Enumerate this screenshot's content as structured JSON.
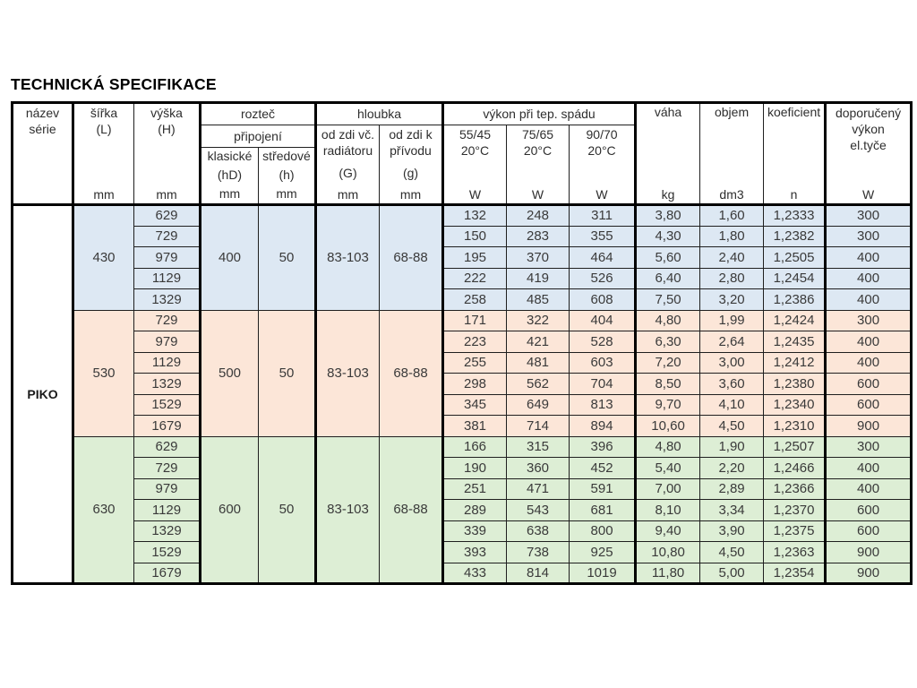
{
  "title": "TECHNICKÁ SPECIFIKACE",
  "table": {
    "series_name": "PIKO",
    "header": {
      "nazev": "název\nsérie",
      "sirka": "šířka\n(L)",
      "vyska": "výška\n(H)",
      "roztec": "rozteč",
      "pripojeni": "připojení",
      "klasicke": "klasické",
      "klasicke_sub": "(hD)",
      "stredove": "středové",
      "stredove_sub": "(h)",
      "hloubka": "hloubka",
      "od_zdi_vc": "od zdi vč.\nradiátoru",
      "od_zdi_vc_sub": "(G)",
      "od_zdi_k": "od zdi k\npřívodu",
      "od_zdi_k_sub": "(g)",
      "vykon": "výkon při tep. spádu",
      "t5545": "55/45\n20°C",
      "t7565": "75/65\n20°C",
      "t9070": "90/70\n20°C",
      "vaha": "váha",
      "vaha_unit": "kg",
      "objem": "objem",
      "objem_unit": "dm3",
      "koeficient": "koeficient",
      "koeficient_unit": "n",
      "doporuceny": "doporučený\nvýkon\nel.tyče",
      "unit_mm": "mm",
      "unit_w": "W"
    },
    "groups": [
      {
        "color": "#dde8f3",
        "sirka": "430",
        "klasicke": "400",
        "stredove": "50",
        "od_zdi_vc": "83-103",
        "od_zdi_k": "68-88",
        "rows": [
          [
            "629",
            "132",
            "248",
            "311",
            "3,80",
            "1,60",
            "1,2333",
            "300"
          ],
          [
            "729",
            "150",
            "283",
            "355",
            "4,30",
            "1,80",
            "1,2382",
            "300"
          ],
          [
            "979",
            "195",
            "370",
            "464",
            "5,60",
            "2,40",
            "1,2505",
            "400"
          ],
          [
            "1129",
            "222",
            "419",
            "526",
            "6,40",
            "2,80",
            "1,2454",
            "400"
          ],
          [
            "1329",
            "258",
            "485",
            "608",
            "7,50",
            "3,20",
            "1,2386",
            "400"
          ]
        ]
      },
      {
        "color": "#fce6d8",
        "sirka": "530",
        "klasicke": "500",
        "stredove": "50",
        "od_zdi_vc": "83-103",
        "od_zdi_k": "68-88",
        "rows": [
          [
            "729",
            "171",
            "322",
            "404",
            "4,80",
            "1,99",
            "1,2424",
            "300"
          ],
          [
            "979",
            "223",
            "421",
            "528",
            "6,30",
            "2,64",
            "1,2435",
            "400"
          ],
          [
            "1129",
            "255",
            "481",
            "603",
            "7,20",
            "3,00",
            "1,2412",
            "400"
          ],
          [
            "1329",
            "298",
            "562",
            "704",
            "8,50",
            "3,60",
            "1,2380",
            "600"
          ],
          [
            "1529",
            "345",
            "649",
            "813",
            "9,70",
            "4,10",
            "1,2340",
            "600"
          ],
          [
            "1679",
            "381",
            "714",
            "894",
            "10,60",
            "4,50",
            "1,2310",
            "900"
          ]
        ]
      },
      {
        "color": "#ddeed5",
        "sirka": "630",
        "klasicke": "600",
        "stredove": "50",
        "od_zdi_vc": "83-103",
        "od_zdi_k": "68-88",
        "rows": [
          [
            "629",
            "166",
            "315",
            "396",
            "4,80",
            "1,90",
            "1,2507",
            "300"
          ],
          [
            "729",
            "190",
            "360",
            "452",
            "5,40",
            "2,20",
            "1,2466",
            "400"
          ],
          [
            "979",
            "251",
            "471",
            "591",
            "7,00",
            "2,89",
            "1,2366",
            "400"
          ],
          [
            "1129",
            "289",
            "543",
            "681",
            "8,10",
            "3,34",
            "1,2370",
            "600"
          ],
          [
            "1329",
            "339",
            "638",
            "800",
            "9,40",
            "3,90",
            "1,2375",
            "600"
          ],
          [
            "1529",
            "393",
            "738",
            "925",
            "10,80",
            "4,50",
            "1,2363",
            "900"
          ],
          [
            "1679",
            "433",
            "814",
            "1019",
            "11,80",
            "5,00",
            "1,2354",
            "900"
          ]
        ]
      }
    ]
  }
}
